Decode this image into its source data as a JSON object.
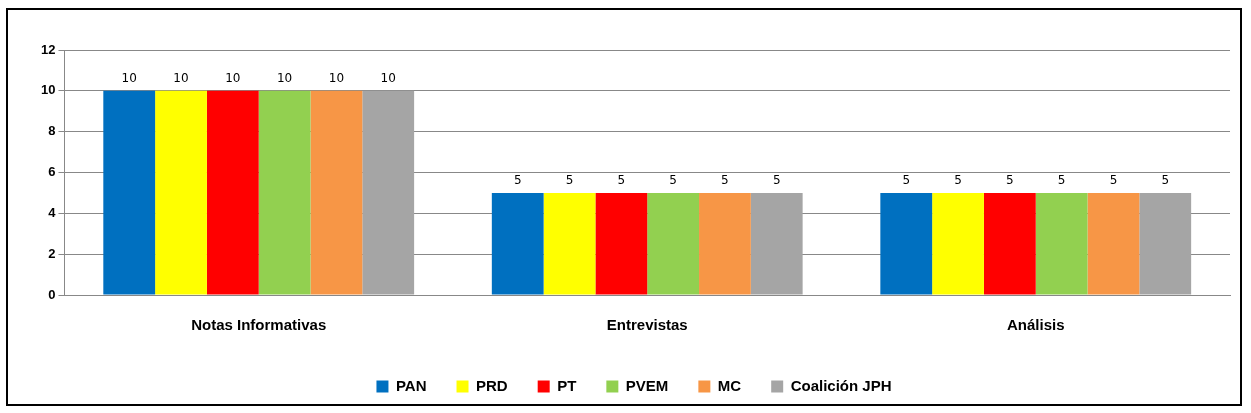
{
  "chart_data": {
    "type": "bar",
    "categories": [
      "Notas Informativas",
      "Entrevistas",
      "Análisis"
    ],
    "series": [
      {
        "name": "PAN",
        "color": "#0070c0",
        "values": [
          10,
          5,
          5
        ]
      },
      {
        "name": "PRD",
        "color": "#ffff00",
        "values": [
          10,
          5,
          5
        ]
      },
      {
        "name": "PT",
        "color": "#ff0000",
        "values": [
          10,
          5,
          5
        ]
      },
      {
        "name": "PVEM",
        "color": "#92d050",
        "values": [
          10,
          5,
          5
        ]
      },
      {
        "name": "MC",
        "color": "#f79646",
        "values": [
          10,
          5,
          5
        ]
      },
      {
        "name": "Coalición JPH",
        "color": "#a5a5a5",
        "values": [
          10,
          5,
          5
        ]
      }
    ],
    "ylim": [
      0,
      12
    ],
    "yticks": [
      0,
      2,
      4,
      6,
      8,
      10,
      12
    ],
    "grid": "y",
    "legend": "bottom",
    "data_labels": true
  }
}
